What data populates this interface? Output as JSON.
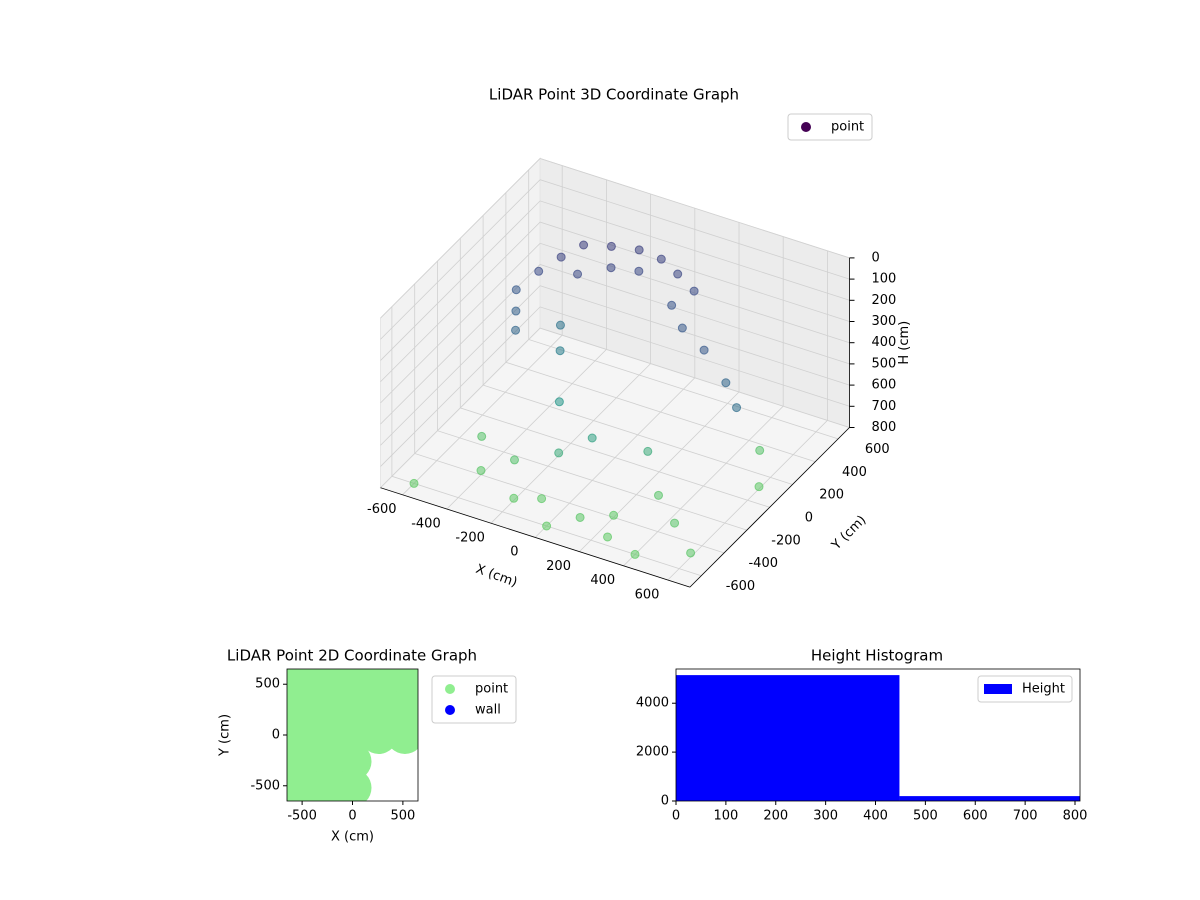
{
  "chart_data": [
    {
      "type": "scatter3d",
      "title": "LiDAR Point 3D Coordinate Graph",
      "xlabel": "X (cm)",
      "ylabel": "Y (cm)",
      "zlabel": "H (cm)",
      "xlim": [
        -700,
        700
      ],
      "ylim": [
        -700,
        700
      ],
      "zlim": [
        0,
        800
      ],
      "z_inverted": true,
      "xticks": [
        -600,
        -400,
        -200,
        0,
        200,
        400,
        600
      ],
      "yticks": [
        -600,
        -400,
        -200,
        0,
        200,
        400,
        600
      ],
      "zticks": [
        0,
        100,
        200,
        300,
        400,
        500,
        600,
        700,
        800
      ],
      "grid": true,
      "legend": "upper right",
      "series": [
        {
          "name": "point",
          "color": "#440154",
          "colormap": "viridis",
          "x": [
            -500,
            -450,
            -400,
            -300,
            -200,
            -100,
            0,
            100,
            -550,
            -500,
            -450,
            -350,
            -250,
            -150,
            50,
            150,
            300,
            450,
            550,
            -350,
            -300,
            -200,
            0,
            -100,
            200,
            -600,
            -400,
            -200,
            0,
            200,
            400,
            600,
            -500,
            300,
            500,
            600,
            -300,
            100,
            450,
            -100,
            250
          ],
          "y": [
            300,
            400,
            500,
            550,
            600,
            600,
            550,
            500,
            200,
            100,
            0,
            350,
            450,
            500,
            400,
            300,
            200,
            100,
            0,
            200,
            100,
            -100,
            -200,
            -300,
            -100,
            -600,
            -400,
            -500,
            -600,
            -400,
            -600,
            -500,
            -200,
            -200,
            300,
            100,
            -300,
            -500,
            -350,
            -450,
            -550
          ],
          "z": [
            250,
            220,
            200,
            200,
            210,
            220,
            230,
            250,
            300,
            330,
            350,
            240,
            230,
            240,
            280,
            300,
            300,
            350,
            380,
            400,
            450,
            550,
            600,
            650,
            650,
            800,
            780,
            790,
            800,
            790,
            800,
            780,
            760,
            770,
            760,
            790,
            750,
            780,
            770,
            785,
            795
          ]
        }
      ]
    },
    {
      "type": "scatter",
      "title": "LiDAR Point 2D Coordinate Graph",
      "xlabel": "X (cm)",
      "ylabel": "Y (cm)",
      "xlim": [
        -650,
        650
      ],
      "ylim": [
        -650,
        650
      ],
      "xticks": [
        -500,
        0,
        500
      ],
      "yticks": [
        -500,
        0,
        500
      ],
      "legend": "outside right",
      "series": [
        {
          "name": "point",
          "color": "#90ee90",
          "x": [
            -520,
            -260,
            0,
            260,
            520,
            -520,
            -260,
            0,
            260,
            520,
            -520,
            -260,
            0,
            260,
            520,
            -520,
            -260,
            0,
            -520,
            -260,
            0
          ],
          "y": [
            520,
            520,
            520,
            520,
            520,
            260,
            260,
            260,
            260,
            260,
            0,
            0,
            0,
            0,
            0,
            -260,
            -260,
            -260,
            -520,
            -520,
            -520
          ]
        },
        {
          "name": "wall",
          "color": "#0000ff",
          "x": [],
          "y": []
        }
      ]
    },
    {
      "type": "histogram",
      "title": "Height Histogram",
      "bins": [
        0,
        448,
        810
      ],
      "xlim": [
        0,
        810
      ],
      "ylim": [
        0,
        5400
      ],
      "xticks": [
        0,
        100,
        200,
        300,
        400,
        500,
        600,
        700,
        800
      ],
      "yticks": [
        0,
        2000,
        4000
      ],
      "legend": "upper right",
      "series": [
        {
          "name": "Height",
          "color": "#0000ff",
          "counts": [
            5150,
            200
          ]
        }
      ]
    }
  ]
}
